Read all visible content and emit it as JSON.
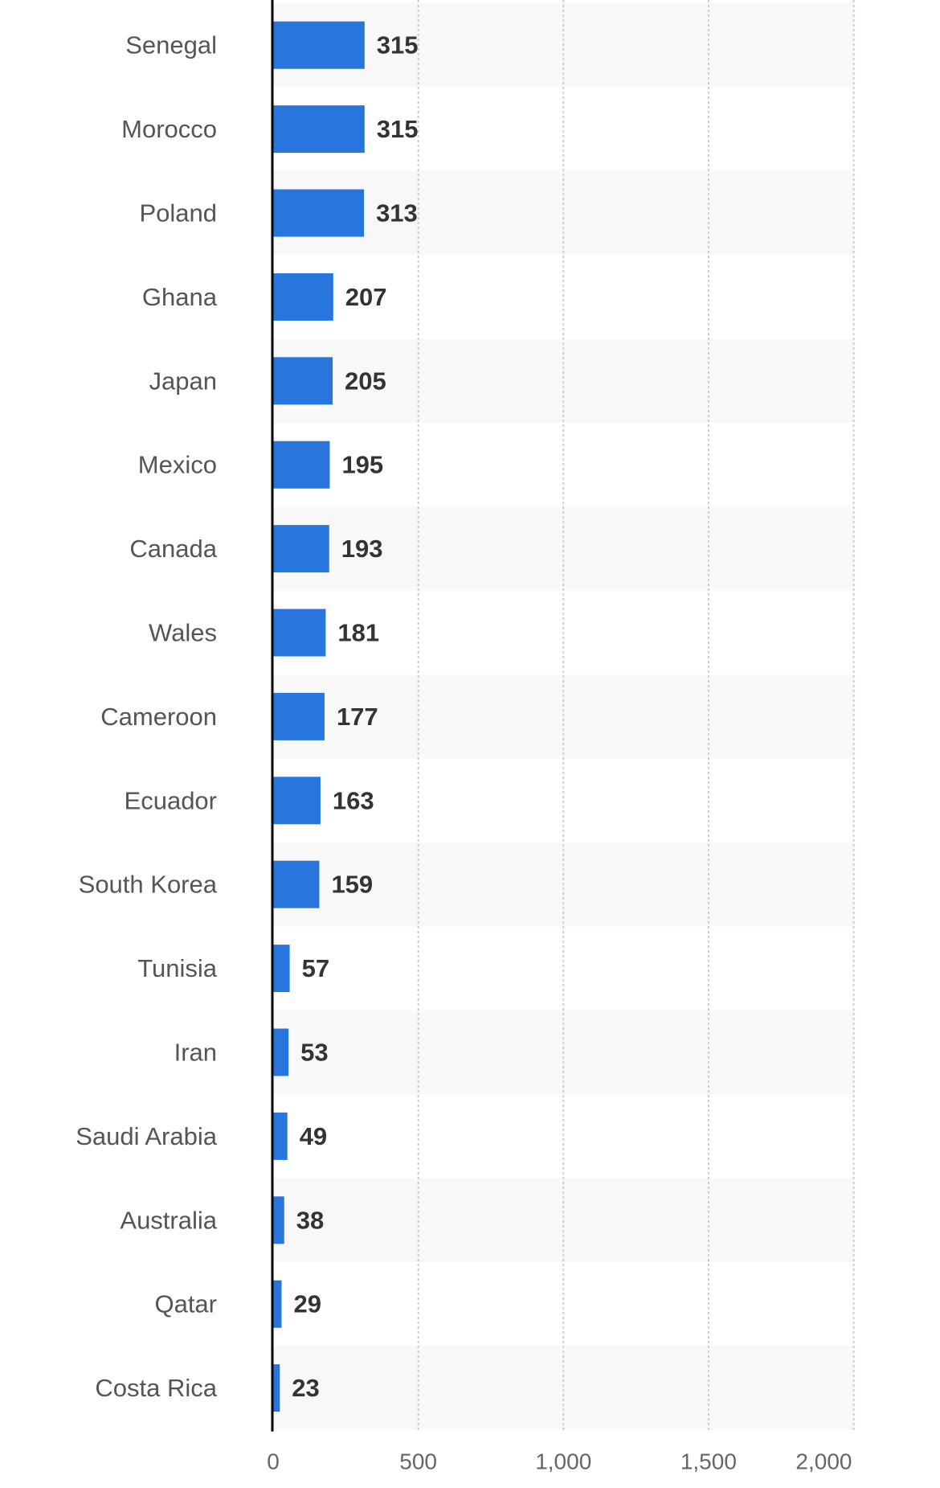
{
  "chart_data": {
    "type": "bar",
    "orientation": "horizontal",
    "categories": [
      "Senegal",
      "Morocco",
      "Poland",
      "Ghana",
      "Japan",
      "Mexico",
      "Canada",
      "Wales",
      "Cameroon",
      "Ecuador",
      "South Korea",
      "Tunisia",
      "Iran",
      "Saudi Arabia",
      "Australia",
      "Qatar",
      "Costa Rica"
    ],
    "values": [
      315,
      315,
      313,
      207,
      205,
      195,
      193,
      181,
      177,
      163,
      159,
      57,
      53,
      49,
      38,
      29,
      23
    ],
    "value_labels": [
      "315",
      "315",
      "313",
      "207",
      "205",
      "195",
      "193",
      "181",
      "177",
      "163",
      "159",
      "57",
      "53",
      "49",
      "38",
      "29",
      "23"
    ],
    "xlim": [
      0,
      2000
    ],
    "x_ticks": [
      0,
      500,
      1000,
      1500,
      2000
    ],
    "x_tick_labels": [
      "0",
      "500",
      "1,000",
      "1,500",
      "2,000"
    ],
    "title": "",
    "xlabel": "",
    "ylabel": "",
    "grid": true,
    "colors": {
      "bar": "#2876dd",
      "band": "#f8f8f8",
      "grid": "#cccccc",
      "axis": "#000000"
    }
  }
}
